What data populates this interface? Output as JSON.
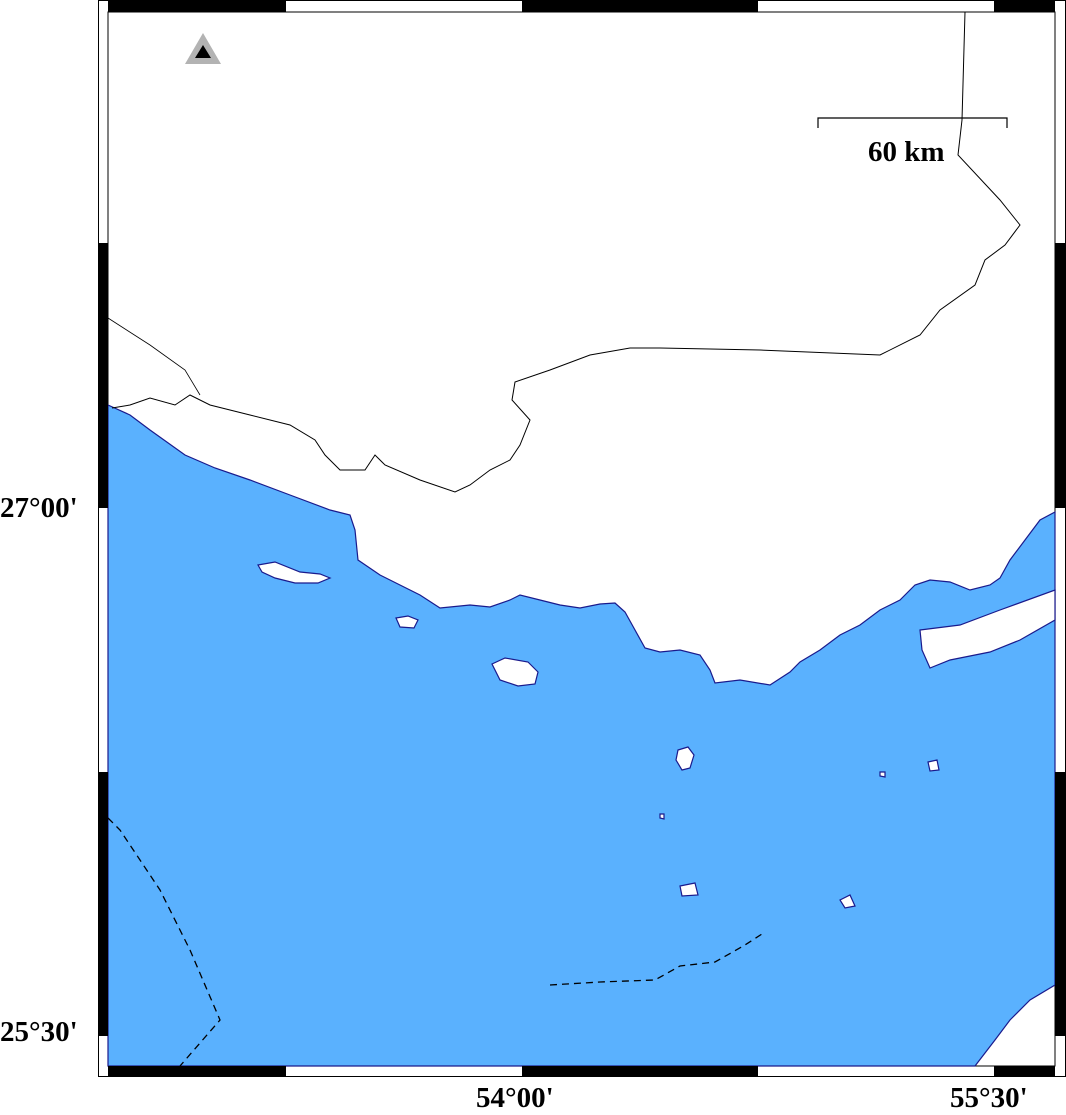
{
  "map": {
    "colors": {
      "sea": "#5ab1fe",
      "land": "#ffffff",
      "coastline": "#1a1a8c",
      "border": "#000000"
    },
    "scale_bar": {
      "label": "60 km"
    },
    "symbol": {
      "icon": "triangle-marker-icon",
      "outer_color": "#b3b3b3",
      "inner_color": "#000000"
    },
    "axes": {
      "lat_labels": [
        "27°00'",
        "25°30'"
      ],
      "lon_labels": [
        "54°00'",
        "55°30'"
      ]
    }
  }
}
